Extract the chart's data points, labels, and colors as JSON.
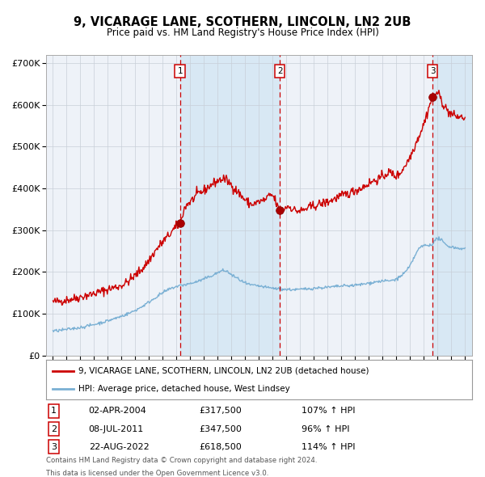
{
  "title": "9, VICARAGE LANE, SCOTHERN, LINCOLN, LN2 2UB",
  "subtitle": "Price paid vs. HM Land Registry's House Price Index (HPI)",
  "ylim": [
    0,
    720000
  ],
  "yticks": [
    0,
    100000,
    200000,
    300000,
    400000,
    500000,
    600000,
    700000
  ],
  "ytick_labels": [
    "£0",
    "£100K",
    "£200K",
    "£300K",
    "£400K",
    "£500K",
    "£600K",
    "£700K"
  ],
  "xlim_start": 1994.5,
  "xlim_end": 2025.5,
  "background_color": "#ffffff",
  "plot_bg_color": "#eef2f8",
  "grid_color": "#c8cfd8",
  "red_line_color": "#cc0000",
  "blue_line_color": "#7ab0d4",
  "shade_color": "#d8e8f4",
  "sale_points": [
    {
      "year": 2004.25,
      "value": 317500,
      "label": "1"
    },
    {
      "year": 2011.52,
      "value": 347500,
      "label": "2"
    },
    {
      "year": 2022.64,
      "value": 618500,
      "label": "3"
    }
  ],
  "vline_color": "#cc0000",
  "footnote1": "Contains HM Land Registry data © Crown copyright and database right 2024.",
  "footnote2": "This data is licensed under the Open Government Licence v3.0.",
  "legend_line1": "9, VICARAGE LANE, SCOTHERN, LINCOLN, LN2 2UB (detached house)",
  "legend_line2": "HPI: Average price, detached house, West Lindsey",
  "table_data": [
    {
      "num": "1",
      "date": "02-APR-2004",
      "price": "£317,500",
      "pct": "107% ↑ HPI"
    },
    {
      "num": "2",
      "date": "08-JUL-2011",
      "price": "£347,500",
      "pct": "96% ↑ HPI"
    },
    {
      "num": "3",
      "date": "22-AUG-2022",
      "price": "£618,500",
      "pct": "114% ↑ HPI"
    }
  ]
}
